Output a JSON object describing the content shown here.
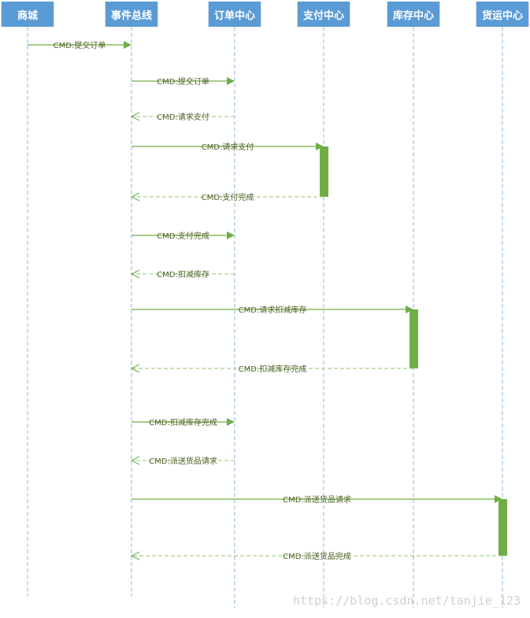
{
  "colors": {
    "header": "#5b9bd5",
    "lifeline": "#9dc3e6",
    "sync": "#70ad47",
    "reply": "#a9d18e",
    "activation": "#70ad47",
    "label": "#4f6228"
  },
  "participants": [
    "商城",
    "事件总线",
    "订单中心",
    "支付中心",
    "库存中心",
    "货运中心"
  ],
  "messages": [
    {
      "from": 0,
      "to": 1,
      "label": "CMD:提交订单",
      "type": "sync"
    },
    {
      "from": 1,
      "to": 2,
      "label": "CMD:提交订单",
      "type": "sync"
    },
    {
      "from": 2,
      "to": 1,
      "label": "CMD:请求支付",
      "type": "reply"
    },
    {
      "from": 1,
      "to": 3,
      "label": "CMD:请求支付",
      "type": "sync"
    },
    {
      "from": 3,
      "to": 1,
      "label": "CMD:支付完成",
      "type": "reply"
    },
    {
      "from": 1,
      "to": 2,
      "label": "CMD:支付完成",
      "type": "sync"
    },
    {
      "from": 2,
      "to": 1,
      "label": "CMD:扣减库存",
      "type": "reply"
    },
    {
      "from": 1,
      "to": 4,
      "label": "CMD:请求扣减库存",
      "type": "sync"
    },
    {
      "from": 4,
      "to": 1,
      "label": "CMD:扣减库存完成",
      "type": "reply"
    },
    {
      "from": 1,
      "to": 2,
      "label": "CMD:扣减库存完成",
      "type": "sync"
    },
    {
      "from": 2,
      "to": 1,
      "label": "CMD:派送货品请求",
      "type": "reply"
    },
    {
      "from": 1,
      "to": 5,
      "label": "CMD:派送货品请求",
      "type": "sync"
    },
    {
      "from": 5,
      "to": 1,
      "label": "CMD:派送货品完成",
      "type": "reply"
    }
  ],
  "activations": [
    {
      "participant": 3,
      "start_message": 3,
      "end_message": 4
    },
    {
      "participant": 4,
      "start_message": 7,
      "end_message": 8
    },
    {
      "participant": 5,
      "start_message": 11,
      "end_message": 12
    }
  ],
  "watermark": "https://blog.csdn.net/tanjie_123"
}
